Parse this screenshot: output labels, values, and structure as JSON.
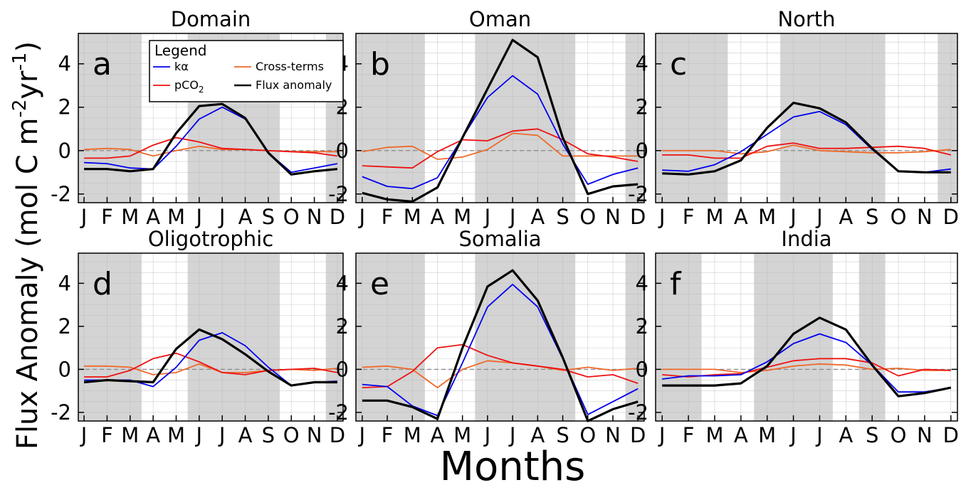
{
  "figure": {
    "ylabel": "Flux Anomaly (mol C m",
    "ylabel_sup1": "-2",
    "ylabel_mid": "yr",
    "ylabel_sup2": "-1",
    "ylabel_end": ")",
    "xlabel": "Months"
  },
  "legend": {
    "title": "Legend",
    "location": "top-left of panel a",
    "entries": [
      {
        "key": "ka",
        "label": "kα",
        "color": "#0000ee"
      },
      {
        "key": "cross",
        "label": "Cross-terms",
        "color": "#ee6a2a"
      },
      {
        "key": "pco2",
        "label": "pCO",
        "sub": "2",
        "color": "#ee1111"
      },
      {
        "key": "flux",
        "label": "Flux anomaly",
        "color": "#000000"
      }
    ]
  },
  "colors": {
    "ka": "#0000ee",
    "pco2": "#ee1111",
    "cross": "#ee6a2a",
    "flux": "#000000",
    "shade": "#d4d4d4",
    "zero_line": "#888888"
  },
  "chart_data": [
    {
      "type": "line",
      "title": "Domain",
      "letter": "a",
      "categories": [
        "J",
        "F",
        "M",
        "A",
        "M",
        "J",
        "J",
        "A",
        "S",
        "O",
        "N",
        "D"
      ],
      "ylim": [
        -2.4,
        5.4
      ],
      "yticks": [
        -2,
        0,
        2,
        4
      ],
      "grid": true,
      "shaded_months": [
        [
          1,
          3
        ],
        [
          6,
          9
        ],
        [
          12,
          12
        ]
      ],
      "series": [
        {
          "key": "ka",
          "values": [
            -0.55,
            -0.6,
            -0.8,
            -0.85,
            0.2,
            1.45,
            2.0,
            1.45,
            -0.1,
            -1.0,
            -0.8,
            -0.6
          ]
        },
        {
          "key": "pco2",
          "values": [
            -0.35,
            -0.35,
            -0.25,
            0.25,
            0.6,
            0.4,
            0.1,
            0.05,
            0.0,
            -0.05,
            -0.1,
            -0.25
          ]
        },
        {
          "key": "cross",
          "values": [
            0.05,
            0.1,
            0.05,
            -0.25,
            0.0,
            0.2,
            0.05,
            0.05,
            0.0,
            -0.05,
            -0.05,
            -0.05
          ]
        },
        {
          "key": "flux",
          "values": [
            -0.85,
            -0.85,
            -0.95,
            -0.85,
            0.8,
            2.05,
            2.15,
            1.5,
            -0.1,
            -1.1,
            -0.95,
            -0.85
          ]
        }
      ]
    },
    {
      "type": "line",
      "title": "Oman",
      "letter": "b",
      "categories": [
        "J",
        "F",
        "M",
        "A",
        "M",
        "J",
        "J",
        "A",
        "S",
        "O",
        "N",
        "D"
      ],
      "ylim": [
        -2.4,
        5.4
      ],
      "yticks": [
        -2,
        0,
        2,
        4
      ],
      "grid": true,
      "shaded_months": [
        [
          1,
          3
        ],
        [
          6,
          9
        ],
        [
          12,
          12
        ]
      ],
      "series": [
        {
          "key": "ka",
          "values": [
            -1.2,
            -1.65,
            -1.75,
            -1.25,
            0.6,
            2.45,
            3.45,
            2.6,
            0.3,
            -1.55,
            -1.1,
            -0.8
          ]
        },
        {
          "key": "pco2",
          "values": [
            -0.7,
            -0.75,
            -0.8,
            -0.05,
            0.5,
            0.45,
            0.9,
            1.0,
            0.5,
            -0.15,
            -0.3,
            -0.5
          ]
        },
        {
          "key": "cross",
          "values": [
            -0.05,
            0.15,
            0.2,
            -0.4,
            -0.3,
            0.05,
            0.8,
            0.7,
            -0.25,
            -0.25,
            -0.25,
            -0.25
          ]
        },
        {
          "key": "flux",
          "values": [
            -1.95,
            -2.25,
            -2.35,
            -1.7,
            0.6,
            2.85,
            5.1,
            4.3,
            0.6,
            -2.0,
            -1.65,
            -1.55
          ]
        }
      ]
    },
    {
      "type": "line",
      "title": "North",
      "letter": "c",
      "categories": [
        "J",
        "F",
        "M",
        "A",
        "M",
        "J",
        "J",
        "A",
        "S",
        "O",
        "N",
        "D"
      ],
      "ylim": [
        -2.4,
        5.4
      ],
      "yticks": [
        -2,
        0,
        2,
        4
      ],
      "grid": true,
      "shaded_months": [
        [
          1,
          3
        ],
        [
          6,
          9
        ],
        [
          12,
          12
        ]
      ],
      "series": [
        {
          "key": "ka",
          "values": [
            -0.9,
            -0.95,
            -0.65,
            -0.05,
            0.75,
            1.55,
            1.8,
            1.2,
            0.05,
            -0.95,
            -1.0,
            -0.85
          ]
        },
        {
          "key": "pco2",
          "values": [
            -0.2,
            -0.2,
            -0.35,
            -0.35,
            0.2,
            0.35,
            0.1,
            0.1,
            0.15,
            0.2,
            0.1,
            -0.2
          ]
        },
        {
          "key": "cross",
          "values": [
            0.0,
            0.0,
            0.0,
            -0.15,
            -0.05,
            0.25,
            0.0,
            -0.05,
            -0.1,
            -0.1,
            -0.05,
            0.05
          ]
        },
        {
          "key": "flux",
          "values": [
            -1.05,
            -1.1,
            -0.95,
            -0.45,
            1.05,
            2.2,
            1.95,
            1.3,
            0.1,
            -0.95,
            -1.0,
            -1.0
          ]
        }
      ]
    },
    {
      "type": "line",
      "title": "Oligotrophic",
      "letter": "d",
      "categories": [
        "J",
        "F",
        "M",
        "A",
        "M",
        "J",
        "J",
        "A",
        "S",
        "O",
        "N",
        "D"
      ],
      "ylim": [
        -2.4,
        5.4
      ],
      "yticks": [
        -2,
        0,
        2,
        4
      ],
      "grid": true,
      "shaded_months": [
        [
          1,
          3
        ],
        [
          6,
          9
        ],
        [
          12,
          12
        ]
      ],
      "series": [
        {
          "key": "ka",
          "values": [
            -0.5,
            -0.5,
            -0.5,
            -0.8,
            0.1,
            1.35,
            1.7,
            1.1,
            0.1,
            -0.75,
            -0.6,
            -0.55
          ]
        },
        {
          "key": "pco2",
          "values": [
            -0.35,
            -0.35,
            -0.05,
            0.5,
            0.75,
            0.35,
            -0.15,
            -0.25,
            -0.05,
            0.0,
            0.05,
            -0.15
          ]
        },
        {
          "key": "cross",
          "values": [
            0.15,
            0.15,
            0.1,
            -0.25,
            -0.15,
            0.25,
            -0.15,
            -0.15,
            -0.05,
            0.0,
            -0.05,
            0.05
          ]
        },
        {
          "key": "flux",
          "values": [
            -0.6,
            -0.5,
            -0.55,
            -0.6,
            0.95,
            1.85,
            1.4,
            0.7,
            -0.1,
            -0.75,
            -0.6,
            -0.6
          ]
        }
      ]
    },
    {
      "type": "line",
      "title": "Somalia",
      "letter": "e",
      "categories": [
        "J",
        "F",
        "M",
        "A",
        "M",
        "J",
        "J",
        "A",
        "S",
        "O",
        "N",
        "D"
      ],
      "ylim": [
        -2.4,
        5.4
      ],
      "yticks": [
        -2,
        0,
        2,
        4
      ],
      "grid": true,
      "shaded_months": [
        [
          1,
          3
        ],
        [
          6,
          9
        ],
        [
          12,
          12
        ]
      ],
      "series": [
        {
          "key": "ka",
          "values": [
            -0.7,
            -0.8,
            -1.7,
            -2.15,
            0.3,
            2.9,
            3.95,
            2.9,
            0.5,
            -2.1,
            -1.5,
            -0.9
          ]
        },
        {
          "key": "pco2",
          "values": [
            -0.85,
            -0.8,
            -0.1,
            1.0,
            1.15,
            0.65,
            0.3,
            0.15,
            0.0,
            -0.35,
            -0.25,
            -0.65
          ]
        },
        {
          "key": "cross",
          "values": [
            0.1,
            0.15,
            0.0,
            -0.85,
            0.0,
            0.4,
            0.3,
            0.15,
            -0.05,
            0.1,
            -0.05,
            0.05
          ]
        },
        {
          "key": "flux",
          "values": [
            -1.45,
            -1.45,
            -1.75,
            -2.3,
            1.0,
            3.85,
            4.6,
            3.2,
            0.55,
            -2.4,
            -1.85,
            -1.5
          ]
        }
      ]
    },
    {
      "type": "line",
      "title": "India",
      "letter": "f",
      "categories": [
        "J",
        "F",
        "M",
        "A",
        "M",
        "J",
        "J",
        "A",
        "S",
        "O",
        "N",
        "D"
      ],
      "ylim": [
        -2.4,
        5.4
      ],
      "yticks": [
        -2,
        0,
        2,
        4
      ],
      "grid": true,
      "shaded_months": [
        [
          1,
          2
        ],
        [
          5,
          7
        ],
        [
          9,
          9
        ]
      ],
      "series": [
        {
          "key": "ka",
          "values": [
            -0.45,
            -0.3,
            -0.3,
            -0.25,
            0.35,
            1.2,
            1.65,
            1.25,
            0.2,
            -1.05,
            -1.05,
            -0.85
          ]
        },
        {
          "key": "pco2",
          "values": [
            -0.25,
            -0.35,
            -0.25,
            -0.2,
            0.1,
            0.4,
            0.5,
            0.5,
            0.3,
            -0.3,
            0.0,
            -0.05
          ]
        },
        {
          "key": "cross",
          "values": [
            0.0,
            0.0,
            0.0,
            -0.15,
            -0.05,
            0.15,
            0.25,
            0.2,
            0.0,
            0.05,
            -0.05,
            -0.05
          ]
        },
        {
          "key": "flux",
          "values": [
            -0.75,
            -0.75,
            -0.75,
            -0.65,
            0.15,
            1.65,
            2.4,
            1.85,
            0.2,
            -1.25,
            -1.1,
            -0.85
          ]
        }
      ]
    }
  ]
}
